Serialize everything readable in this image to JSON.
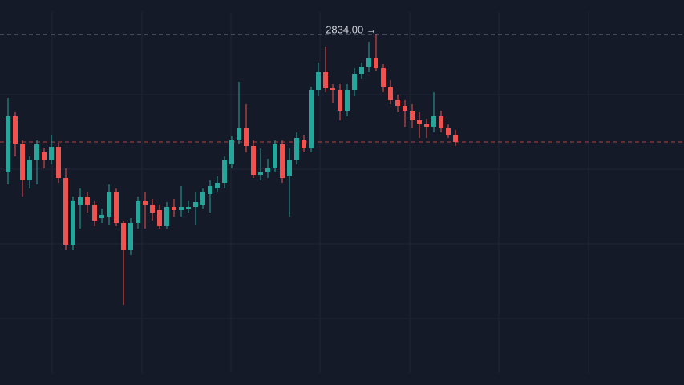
{
  "chart_data": {
    "type": "candlestick",
    "up_color": "#26a69a",
    "down_color": "#ef5350",
    "ylim": [
      2397,
      2877
    ],
    "annotations": [
      {
        "value": 2834,
        "label": "2834.00 →"
      }
    ],
    "open": [
      2662,
      2732,
      2697,
      2652,
      2677,
      2687,
      2677,
      2694,
      2655,
      2572,
      2622,
      2632,
      2622,
      2605,
      2607,
      2637,
      2599,
      2565,
      2599,
      2627,
      2622,
      2615,
      2595,
      2619,
      2615,
      2617,
      2619,
      2622,
      2635,
      2642,
      2649,
      2672,
      2702,
      2717,
      2695,
      2659,
      2662,
      2667,
      2697,
      2657,
      2677,
      2702,
      2692,
      2765,
      2787,
      2767,
      2765,
      2739,
      2765,
      2785,
      2793,
      2805,
      2792,
      2769,
      2752,
      2745,
      2739,
      2727,
      2722,
      2719,
      2732,
      2717,
      2709
    ],
    "high": [
      2755,
      2737,
      2702,
      2682,
      2702,
      2692,
      2709,
      2699,
      2667,
      2632,
      2642,
      2637,
      2627,
      2617,
      2647,
      2642,
      2602,
      2605,
      2632,
      2637,
      2629,
      2622,
      2625,
      2629,
      2645,
      2627,
      2637,
      2642,
      2652,
      2657,
      2682,
      2707,
      2775,
      2747,
      2702,
      2692,
      2679,
      2702,
      2702,
      2692,
      2712,
      2709,
      2769,
      2799,
      2819,
      2772,
      2772,
      2772,
      2792,
      2799,
      2825,
      2834,
      2797,
      2777,
      2759,
      2752,
      2747,
      2737,
      2729,
      2762,
      2739,
      2722,
      2715
    ],
    "low": [
      2647,
      2682,
      2632,
      2642,
      2647,
      2667,
      2672,
      2649,
      2565,
      2565,
      2592,
      2612,
      2595,
      2599,
      2597,
      2595,
      2497,
      2559,
      2592,
      2592,
      2602,
      2592,
      2592,
      2607,
      2607,
      2612,
      2597,
      2617,
      2612,
      2637,
      2642,
      2667,
      2697,
      2687,
      2655,
      2652,
      2655,
      2662,
      2649,
      2607,
      2672,
      2687,
      2687,
      2757,
      2762,
      2749,
      2727,
      2732,
      2757,
      2779,
      2787,
      2789,
      2762,
      2747,
      2737,
      2719,
      2717,
      2705,
      2705,
      2712,
      2712,
      2705,
      2695
    ],
    "close": [
      2732,
      2697,
      2652,
      2677,
      2697,
      2677,
      2694,
      2655,
      2572,
      2627,
      2632,
      2622,
      2602,
      2609,
      2637,
      2599,
      2565,
      2599,
      2627,
      2622,
      2612,
      2595,
      2619,
      2615,
      2619,
      2619,
      2625,
      2637,
      2645,
      2649,
      2677,
      2702,
      2717,
      2695,
      2659,
      2662,
      2667,
      2697,
      2655,
      2677,
      2705,
      2692,
      2765,
      2787,
      2767,
      2765,
      2739,
      2765,
      2785,
      2793,
      2805,
      2792,
      2769,
      2752,
      2745,
      2739,
      2727,
      2722,
      2719,
      2732,
      2717,
      2709,
      2700
    ]
  }
}
